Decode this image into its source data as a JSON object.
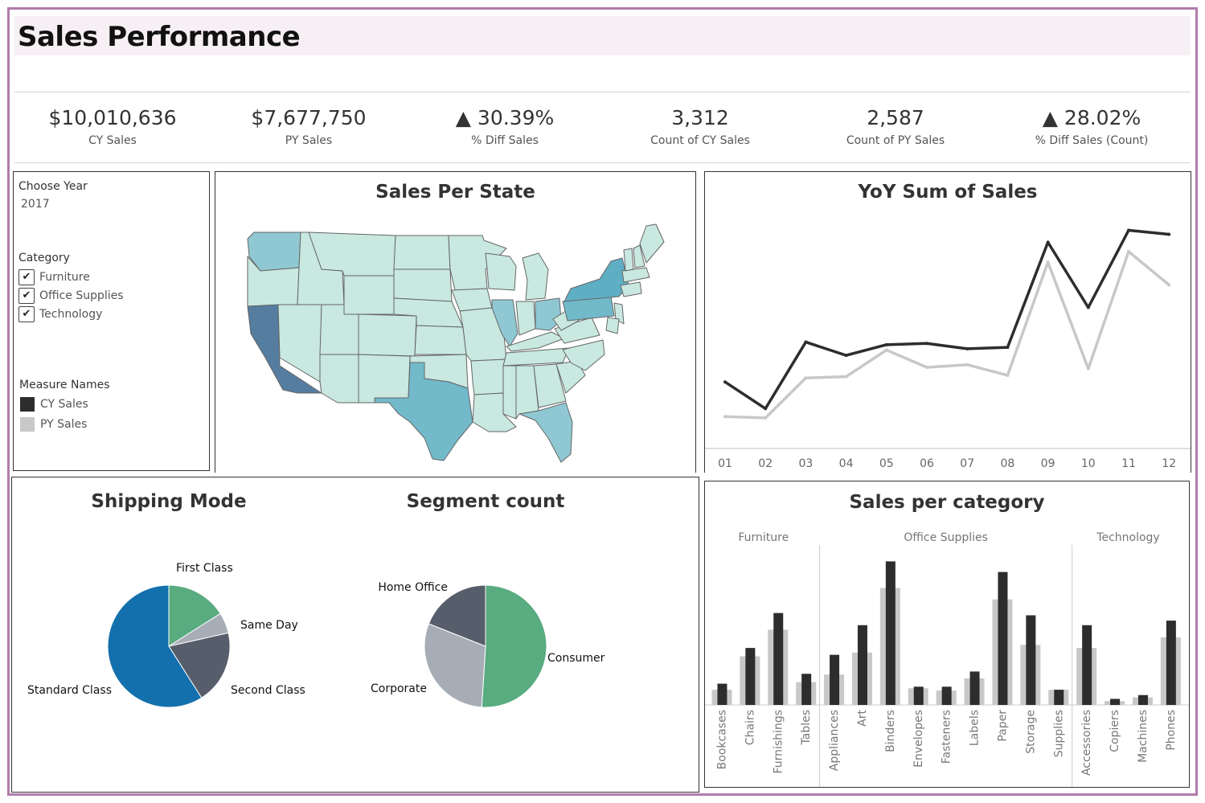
{
  "page": {
    "title": "Sales Performance"
  },
  "colors": {
    "cy": "#2d2d2d",
    "py": "#c8c8c8",
    "frame": "#b07cab"
  },
  "kpis": [
    {
      "value": "$10,010,636",
      "label": "CY Sales"
    },
    {
      "value": "$7,677,750",
      "label": "PY Sales"
    },
    {
      "value": "▲ 30.39%",
      "label": "% Diff Sales"
    },
    {
      "value": "3,312",
      "label": "Count of CY Sales"
    },
    {
      "value": "2,587",
      "label": "Count of PY Sales"
    },
    {
      "value": "▲ 28.02%",
      "label": "% Diff Sales (Count)"
    }
  ],
  "filters": {
    "year_label": "Choose Year",
    "year_value": "2017",
    "category_label": "Category",
    "categories": [
      "Furniture",
      "Office Supplies",
      "Technology"
    ],
    "measure_label": "Measure Names",
    "measures": [
      "CY Sales",
      "PY Sales"
    ]
  },
  "map": {
    "title": "Sales Per State"
  },
  "chart_data": [
    {
      "type": "line",
      "title": "YoY Sum of Sales",
      "x": [
        "01",
        "02",
        "03",
        "04",
        "05",
        "06",
        "07",
        "08",
        "09",
        "10",
        "11",
        "12"
      ],
      "series": [
        {
          "name": "CY Sales",
          "values": [
            500,
            300,
            800,
            700,
            780,
            790,
            750,
            760,
            1550,
            1060,
            1640,
            1610
          ]
        },
        {
          "name": "PY Sales",
          "values": [
            240,
            230,
            530,
            540,
            740,
            610,
            630,
            550,
            1400,
            600,
            1480,
            1230
          ]
        }
      ],
      "ylim": [
        0,
        1800
      ]
    },
    {
      "type": "pie",
      "title": "Shipping Mode",
      "categories": [
        "First Class",
        "Same Day",
        "Second Class",
        "Standard Class"
      ],
      "values": [
        16,
        5.5,
        19.5,
        59
      ],
      "colors": [
        "#59ab80",
        "#a7adb6",
        "#575e6b",
        "#1370ad"
      ]
    },
    {
      "type": "pie",
      "title": "Segment count",
      "categories": [
        "Consumer",
        "Corporate",
        "Home Office"
      ],
      "values": [
        51,
        30,
        19
      ],
      "colors": [
        "#59ab80",
        "#a7adb6",
        "#575e6b"
      ]
    },
    {
      "type": "bar",
      "title": "Sales per category",
      "groups": [
        {
          "name": "Furniture",
          "categories": [
            "Bookcases",
            "Chairs",
            "Furnishings",
            "Tables"
          ]
        },
        {
          "name": "Office Supplies",
          "categories": [
            "Appliances",
            "Art",
            "Binders",
            "Envelopes",
            "Fasteners",
            "Labels",
            "Paper",
            "Storage",
            "Supplies"
          ]
        },
        {
          "name": "Technology",
          "categories": [
            "Accessories",
            "Copiers",
            "Machines",
            "Phones"
          ]
        }
      ],
      "categories": [
        "Bookcases",
        "Chairs",
        "Furnishings",
        "Tables",
        "Appliances",
        "Art",
        "Binders",
        "Envelopes",
        "Fasteners",
        "Labels",
        "Paper",
        "Storage",
        "Supplies",
        "Accessories",
        "Copiers",
        "Machines",
        "Phones"
      ],
      "series": [
        {
          "name": "CY Sales",
          "values": [
            28,
            75,
            121,
            41,
            66,
            105,
            189,
            24,
            24,
            44,
            175,
            118,
            20,
            105,
            8,
            13,
            111
          ]
        },
        {
          "name": "PY Sales",
          "values": [
            20,
            64,
            99,
            30,
            40,
            69,
            154,
            22,
            19,
            35,
            139,
            79,
            20,
            75,
            5,
            10,
            89
          ]
        }
      ],
      "ylim": [
        0,
        200
      ]
    }
  ]
}
